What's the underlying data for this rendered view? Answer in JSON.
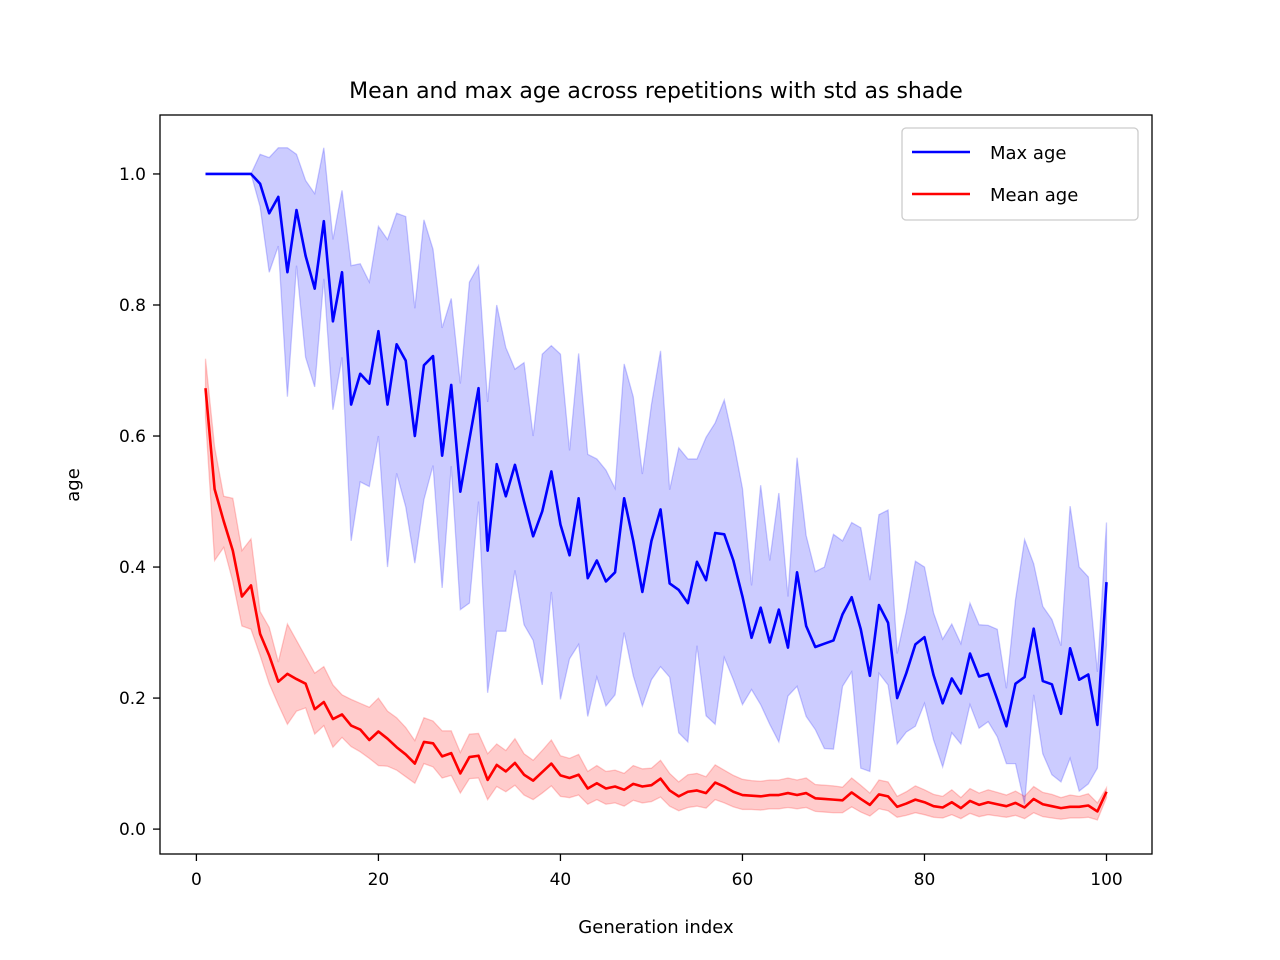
{
  "chart_data": {
    "type": "line",
    "title": "Mean and max age across repetitions with std as shade",
    "xlabel": "Generation index",
    "ylabel": "age",
    "xlim": [
      -4,
      105
    ],
    "ylim": [
      -0.038,
      1.09
    ],
    "xticks": [
      0,
      20,
      40,
      60,
      80,
      100
    ],
    "xtick_labels": [
      "0",
      "20",
      "40",
      "60",
      "80",
      "100"
    ],
    "yticks": [
      0.0,
      0.2,
      0.4,
      0.6,
      0.8,
      1.0
    ],
    "ytick_labels": [
      "0.0",
      "0.2",
      "0.4",
      "0.6",
      "0.8",
      "1.0"
    ],
    "grid": false,
    "legend_position": "top-right",
    "x": [
      1,
      2,
      3,
      4,
      5,
      6,
      7,
      8,
      9,
      10,
      11,
      12,
      13,
      14,
      15,
      16,
      17,
      18,
      19,
      20,
      21,
      22,
      23,
      24,
      25,
      26,
      27,
      28,
      29,
      30,
      31,
      32,
      33,
      34,
      35,
      36,
      37,
      38,
      39,
      40,
      41,
      42,
      43,
      44,
      45,
      46,
      47,
      48,
      49,
      50,
      51,
      52,
      53,
      54,
      55,
      56,
      57,
      58,
      59,
      60,
      61,
      62,
      63,
      64,
      65,
      66,
      67,
      68,
      69,
      70,
      71,
      72,
      73,
      74,
      75,
      76,
      77,
      78,
      79,
      80,
      81,
      82,
      83,
      84,
      85,
      86,
      87,
      88,
      89,
      90,
      91,
      92,
      93,
      94,
      95,
      96,
      97,
      98,
      99,
      100
    ],
    "series": [
      {
        "name": "Max age",
        "color": "#0000ff",
        "shade_color": "#0000ff",
        "values": [
          1.0,
          1.0,
          1.0,
          1.0,
          1.0,
          1.0,
          0.985,
          0.94,
          0.965,
          0.85,
          0.945,
          0.875,
          0.825,
          0.928,
          0.775,
          0.85,
          0.648,
          0.695,
          0.68,
          0.76,
          0.648,
          0.74,
          0.715,
          0.6,
          0.708,
          0.722,
          0.57,
          0.678,
          0.515,
          0.595,
          0.673,
          0.425,
          0.557,
          0.508,
          0.556,
          0.5,
          0.447,
          0.485,
          0.546,
          0.465,
          0.418,
          0.505,
          0.383,
          0.41,
          0.378,
          0.392,
          0.505,
          0.44,
          0.362,
          0.44,
          0.488,
          0.375,
          0.365,
          0.345,
          0.408,
          0.38,
          0.452,
          0.45,
          0.41,
          0.355,
          0.292,
          0.338,
          0.285,
          0.335,
          0.277,
          0.392,
          0.31,
          0.278,
          0.283,
          0.288,
          0.328,
          0.354,
          0.305,
          0.234,
          0.342,
          0.315,
          0.2,
          0.238,
          0.282,
          0.293,
          0.235,
          0.192,
          0.23,
          0.207,
          0.268,
          0.233,
          0.237,
          0.198,
          0.157,
          0.222,
          0.232,
          0.306,
          0.226,
          0.221,
          0.176,
          0.276,
          0.228,
          0.236,
          0.159,
          0.377
        ],
        "std_lower": [
          1.0,
          1.0,
          1.0,
          1.0,
          1.0,
          1.0,
          0.95,
          0.85,
          0.89,
          0.66,
          0.86,
          0.72,
          0.675,
          0.84,
          0.64,
          0.72,
          0.44,
          0.53,
          0.523,
          0.6,
          0.4,
          0.543,
          0.492,
          0.406,
          0.503,
          0.555,
          0.368,
          0.554,
          0.335,
          0.345,
          0.5,
          0.208,
          0.302,
          0.302,
          0.395,
          0.312,
          0.288,
          0.22,
          0.362,
          0.198,
          0.26,
          0.282,
          0.172,
          0.232,
          0.188,
          0.205,
          0.3,
          0.234,
          0.188,
          0.228,
          0.248,
          0.232,
          0.147,
          0.133,
          0.28,
          0.173,
          0.16,
          0.262,
          0.228,
          0.19,
          0.213,
          0.19,
          0.16,
          0.133,
          0.203,
          0.218,
          0.172,
          0.152,
          0.123,
          0.122,
          0.218,
          0.24,
          0.093,
          0.088,
          0.238,
          0.22,
          0.13,
          0.148,
          0.157,
          0.192,
          0.136,
          0.095,
          0.147,
          0.13,
          0.19,
          0.154,
          0.164,
          0.141,
          0.1,
          0.1,
          0.038,
          0.205,
          0.115,
          0.083,
          0.072,
          0.108,
          0.058,
          0.069,
          0.093,
          0.281
        ],
        "std_upper": [
          1.0,
          1.0,
          1.0,
          1.0,
          1.0,
          1.0,
          1.03,
          1.025,
          1.04,
          1.04,
          1.03,
          0.99,
          0.97,
          1.04,
          0.9,
          0.975,
          0.86,
          0.863,
          0.835,
          0.92,
          0.9,
          0.94,
          0.935,
          0.795,
          0.93,
          0.885,
          0.765,
          0.81,
          0.68,
          0.835,
          0.86,
          0.652,
          0.8,
          0.735,
          0.702,
          0.712,
          0.6,
          0.725,
          0.738,
          0.725,
          0.578,
          0.726,
          0.572,
          0.565,
          0.548,
          0.52,
          0.71,
          0.66,
          0.542,
          0.648,
          0.73,
          0.518,
          0.582,
          0.565,
          0.565,
          0.598,
          0.62,
          0.655,
          0.593,
          0.52,
          0.372,
          0.525,
          0.41,
          0.513,
          0.355,
          0.567,
          0.448,
          0.393,
          0.4,
          0.45,
          0.44,
          0.468,
          0.46,
          0.38,
          0.48,
          0.487,
          0.268,
          0.332,
          0.409,
          0.4,
          0.33,
          0.29,
          0.313,
          0.283,
          0.345,
          0.312,
          0.311,
          0.305,
          0.215,
          0.35,
          0.442,
          0.405,
          0.34,
          0.32,
          0.28,
          0.493,
          0.4,
          0.385,
          0.24,
          0.468
        ]
      },
      {
        "name": "Mean age",
        "color": "#ff0000",
        "shade_color": "#ff0000",
        "values": [
          0.673,
          0.519,
          0.47,
          0.425,
          0.355,
          0.372,
          0.298,
          0.265,
          0.225,
          0.237,
          0.229,
          0.222,
          0.183,
          0.194,
          0.168,
          0.175,
          0.158,
          0.152,
          0.136,
          0.149,
          0.138,
          0.125,
          0.114,
          0.1,
          0.133,
          0.131,
          0.111,
          0.116,
          0.085,
          0.11,
          0.112,
          0.075,
          0.098,
          0.088,
          0.101,
          0.083,
          0.074,
          0.087,
          0.1,
          0.082,
          0.078,
          0.083,
          0.062,
          0.07,
          0.062,
          0.065,
          0.06,
          0.069,
          0.065,
          0.067,
          0.077,
          0.059,
          0.05,
          0.057,
          0.059,
          0.055,
          0.071,
          0.065,
          0.057,
          0.052,
          0.051,
          0.05,
          0.052,
          0.052,
          0.055,
          0.052,
          0.055,
          0.047,
          0.046,
          0.045,
          0.044,
          0.056,
          0.046,
          0.037,
          0.053,
          0.05,
          0.034,
          0.039,
          0.045,
          0.041,
          0.035,
          0.033,
          0.041,
          0.032,
          0.043,
          0.037,
          0.041,
          0.038,
          0.035,
          0.04,
          0.033,
          0.046,
          0.038,
          0.035,
          0.032,
          0.034,
          0.034,
          0.036,
          0.027,
          0.057
        ],
        "std_lower": [
          0.628,
          0.41,
          0.43,
          0.378,
          0.31,
          0.305,
          0.265,
          0.222,
          0.19,
          0.16,
          0.18,
          0.185,
          0.145,
          0.158,
          0.125,
          0.14,
          0.126,
          0.118,
          0.108,
          0.097,
          0.096,
          0.09,
          0.08,
          0.07,
          0.1,
          0.095,
          0.078,
          0.082,
          0.055,
          0.077,
          0.078,
          0.045,
          0.065,
          0.057,
          0.067,
          0.052,
          0.045,
          0.055,
          0.066,
          0.05,
          0.048,
          0.052,
          0.038,
          0.045,
          0.038,
          0.04,
          0.035,
          0.044,
          0.04,
          0.042,
          0.049,
          0.035,
          0.028,
          0.033,
          0.035,
          0.032,
          0.045,
          0.04,
          0.034,
          0.03,
          0.03,
          0.029,
          0.031,
          0.031,
          0.033,
          0.031,
          0.033,
          0.027,
          0.026,
          0.025,
          0.025,
          0.034,
          0.026,
          0.02,
          0.031,
          0.028,
          0.018,
          0.021,
          0.025,
          0.022,
          0.018,
          0.017,
          0.022,
          0.016,
          0.024,
          0.019,
          0.022,
          0.02,
          0.018,
          0.021,
          0.016,
          0.025,
          0.019,
          0.017,
          0.015,
          0.017,
          0.017,
          0.018,
          0.014,
          0.048
        ],
        "std_upper": [
          0.718,
          0.583,
          0.508,
          0.505,
          0.425,
          0.443,
          0.332,
          0.308,
          0.255,
          0.313,
          0.288,
          0.263,
          0.238,
          0.248,
          0.22,
          0.205,
          0.198,
          0.192,
          0.186,
          0.2,
          0.18,
          0.17,
          0.155,
          0.135,
          0.17,
          0.165,
          0.15,
          0.15,
          0.117,
          0.145,
          0.146,
          0.115,
          0.13,
          0.12,
          0.138,
          0.115,
          0.105,
          0.12,
          0.136,
          0.112,
          0.108,
          0.114,
          0.088,
          0.097,
          0.088,
          0.09,
          0.085,
          0.097,
          0.092,
          0.093,
          0.105,
          0.085,
          0.072,
          0.083,
          0.085,
          0.08,
          0.098,
          0.09,
          0.082,
          0.076,
          0.074,
          0.073,
          0.075,
          0.075,
          0.078,
          0.075,
          0.078,
          0.068,
          0.067,
          0.066,
          0.064,
          0.078,
          0.067,
          0.055,
          0.075,
          0.072,
          0.05,
          0.057,
          0.066,
          0.06,
          0.053,
          0.05,
          0.06,
          0.048,
          0.062,
          0.055,
          0.06,
          0.056,
          0.052,
          0.058,
          0.05,
          0.065,
          0.056,
          0.053,
          0.048,
          0.052,
          0.05,
          0.054,
          0.04,
          0.063
        ]
      }
    ]
  }
}
